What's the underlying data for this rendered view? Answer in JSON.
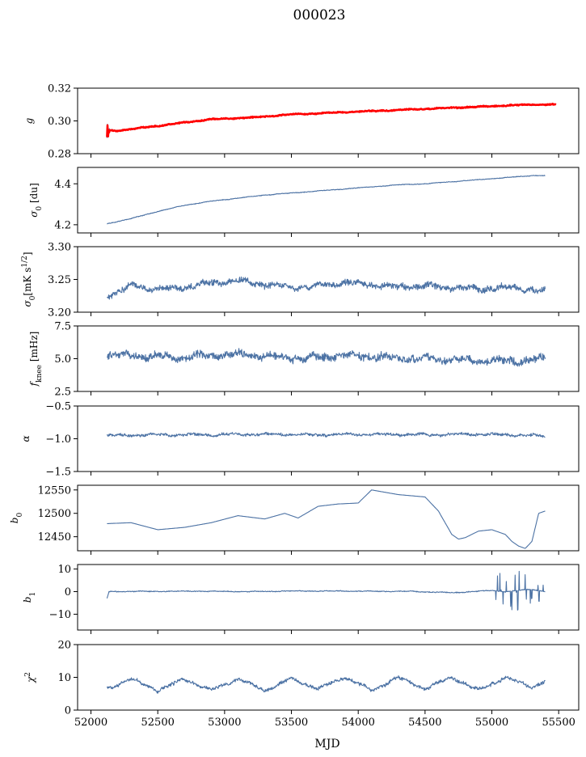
{
  "figure": {
    "title": "000023",
    "xlabel": "MJD"
  },
  "colors": {
    "series": "#4c72a4",
    "model": "#ff0000"
  },
  "chart_data": [
    {
      "type": "line",
      "ylabel": "g",
      "ylabel_kind": "g",
      "xlim": [
        51900,
        55650
      ],
      "ylim": [
        0.28,
        0.32
      ],
      "yticks": [
        0.28,
        0.3,
        0.32
      ],
      "ytick_labels": [
        "0.28",
        "0.30",
        "0.32"
      ],
      "xticks": [
        52000,
        52500,
        53000,
        53500,
        54000,
        54500,
        55000,
        55500
      ],
      "series": [
        {
          "role": "data",
          "x": [
            52120,
            52300,
            52600,
            52900,
            53200,
            53500,
            53800,
            54100,
            54400,
            54700,
            55000,
            55300,
            55400
          ],
          "values": [
            0.294,
            0.295,
            0.298,
            0.301,
            0.302,
            0.304,
            0.305,
            0.306,
            0.307,
            0.308,
            0.309,
            0.31,
            0.31
          ]
        },
        {
          "role": "model",
          "x": [
            52120,
            52200,
            52300,
            52600,
            52900,
            53200,
            53500,
            53800,
            54100,
            54400,
            54700,
            55000,
            55300,
            55480
          ],
          "values": [
            0.294,
            0.294,
            0.295,
            0.298,
            0.301,
            0.302,
            0.304,
            0.305,
            0.306,
            0.307,
            0.308,
            0.309,
            0.31,
            0.31
          ]
        }
      ]
    },
    {
      "type": "line",
      "ylabel": "σ0 [du]",
      "ylabel_kind": "sigma_du",
      "xlim": [
        51900,
        55650
      ],
      "ylim": [
        4.16,
        4.48
      ],
      "yticks": [
        4.2,
        4.4
      ],
      "ytick_labels": [
        "4.2",
        "4.4"
      ],
      "series": [
        {
          "x": [
            52120,
            52300,
            52500,
            52700,
            52900,
            53100,
            53300,
            53500,
            53700,
            53900,
            54100,
            54300,
            54500,
            54700,
            54900,
            55100,
            55300,
            55400
          ],
          "values": [
            4.205,
            4.23,
            4.265,
            4.295,
            4.315,
            4.33,
            4.345,
            4.355,
            4.365,
            4.375,
            4.385,
            4.395,
            4.4,
            4.41,
            4.42,
            4.43,
            4.44,
            4.44
          ]
        }
      ]
    },
    {
      "type": "line",
      "ylabel": "σ0[mK s1/2]",
      "ylabel_kind": "sigma_mk",
      "xlim": [
        51900,
        55650
      ],
      "ylim": [
        3.2,
        3.3
      ],
      "yticks": [
        3.2,
        3.25,
        3.3
      ],
      "ytick_labels": [
        "3.20",
        "3.25",
        "3.30"
      ],
      "series": [
        {
          "x": [
            52120,
            52300,
            52500,
            52700,
            52900,
            53100,
            53300,
            53500,
            53700,
            53900,
            54100,
            54300,
            54500,
            54700,
            54900,
            55100,
            55300,
            55400
          ],
          "values": [
            3.225,
            3.24,
            3.235,
            3.238,
            3.245,
            3.248,
            3.242,
            3.238,
            3.24,
            3.245,
            3.242,
            3.238,
            3.24,
            3.238,
            3.235,
            3.238,
            3.235,
            3.232
          ]
        }
      ]
    },
    {
      "type": "line",
      "ylabel": "fknee [mHz]",
      "ylabel_kind": "fknee",
      "xlim": [
        51900,
        55650
      ],
      "ylim": [
        2.5,
        7.5
      ],
      "yticks": [
        2.5,
        5.0,
        7.5
      ],
      "ytick_labels": [
        "2.5",
        "5.0",
        "7.5"
      ],
      "series": [
        {
          "x": [
            52120,
            52400,
            52700,
            53000,
            53300,
            53600,
            53900,
            54200,
            54500,
            54800,
            55100,
            55400
          ],
          "values": [
            5.3,
            5.2,
            5.1,
            5.3,
            5.2,
            5.0,
            5.3,
            5.1,
            5.0,
            4.9,
            4.8,
            5.0
          ]
        }
      ]
    },
    {
      "type": "line",
      "ylabel": "α",
      "ylabel_kind": "alpha",
      "xlim": [
        51900,
        55650
      ],
      "ylim": [
        -1.5,
        -0.5
      ],
      "yticks": [
        -1.5,
        -1.0,
        -0.5
      ],
      "ytick_labels": [
        "−1.5",
        "−1.0",
        "−0.5"
      ],
      "series": [
        {
          "x": [
            52120,
            52500,
            52900,
            53300,
            53700,
            54100,
            54500,
            54900,
            55300,
            55400
          ],
          "values": [
            -0.95,
            -0.94,
            -0.94,
            -0.93,
            -0.94,
            -0.93,
            -0.94,
            -0.93,
            -0.95,
            -0.96
          ]
        }
      ]
    },
    {
      "type": "line",
      "ylabel": "b0",
      "ylabel_kind": "b0",
      "xlim": [
        51900,
        55650
      ],
      "ylim": [
        12420,
        12560
      ],
      "yticks": [
        12450,
        12500,
        12550
      ],
      "ytick_labels": [
        "12450",
        "12500",
        "12550"
      ],
      "series": [
        {
          "x": [
            52120,
            52300,
            52500,
            52700,
            52900,
            53100,
            53300,
            53450,
            53550,
            53700,
            53850,
            54000,
            54100,
            54300,
            54500,
            54600,
            54700,
            54750,
            54800,
            54900,
            55000,
            55100,
            55150,
            55200,
            55250,
            55300,
            55350,
            55400
          ],
          "values": [
            12478,
            12480,
            12465,
            12470,
            12480,
            12495,
            12488,
            12500,
            12490,
            12515,
            12520,
            12522,
            12550,
            12540,
            12535,
            12505,
            12455,
            12445,
            12448,
            12462,
            12465,
            12455,
            12440,
            12430,
            12425,
            12440,
            12500,
            12505
          ]
        }
      ]
    },
    {
      "type": "line",
      "ylabel": "b1",
      "ylabel_kind": "b1",
      "xlim": [
        51900,
        55650
      ],
      "ylim": [
        -17,
        12
      ],
      "yticks": [
        -10,
        0,
        10
      ],
      "ytick_labels": [
        "−10",
        "0",
        "10"
      ],
      "series": [
        {
          "x": [
            52120,
            52400,
            52800,
            53200,
            53600,
            54000,
            54400,
            54700,
            55000,
            55100,
            55200,
            55300,
            55400
          ],
          "values": [
            0.0,
            0.1,
            0.2,
            0.0,
            0.3,
            0.2,
            0.1,
            -0.5,
            0.5,
            0.0,
            0.5,
            1.0,
            0.0
          ]
        }
      ]
    },
    {
      "type": "line",
      "ylabel": "χ2",
      "ylabel_kind": "chi2",
      "xlim": [
        51900,
        55650
      ],
      "ylim": [
        0,
        20
      ],
      "yticks": [
        0,
        10,
        20
      ],
      "ytick_labels": [
        "0",
        "10",
        "20"
      ],
      "xtick_labels": [
        "52000",
        "52500",
        "53000",
        "53500",
        "54000",
        "54500",
        "55000",
        "55500"
      ],
      "series": [
        {
          "x": [
            52120,
            52300,
            52500,
            52700,
            52900,
            53100,
            53300,
            53500,
            53700,
            53900,
            54100,
            54300,
            54500,
            54700,
            54900,
            55100,
            55300,
            55400
          ],
          "values": [
            6.5,
            9.5,
            6.0,
            9.5,
            6.0,
            9.5,
            6.0,
            9.5,
            6.5,
            10.0,
            6.0,
            10.0,
            6.5,
            10.0,
            6.0,
            10.0,
            7.0,
            9.0
          ]
        }
      ]
    }
  ]
}
